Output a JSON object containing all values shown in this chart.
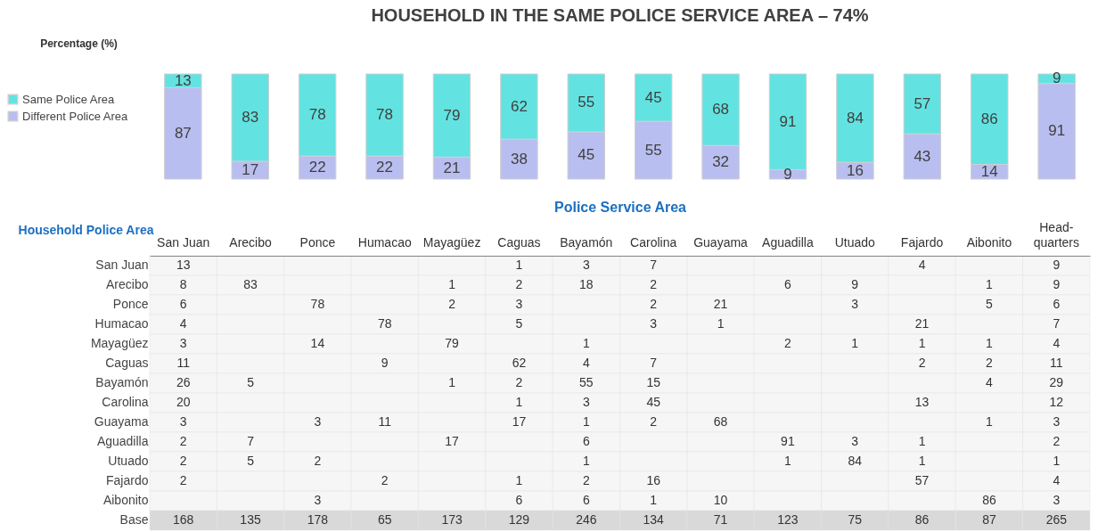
{
  "chart_data": [
    {
      "type": "bar",
      "title": "HOUSEHOLD IN THE SAME POLICE SERVICE AREA – 74%",
      "ylabel": "Percentage (%)",
      "stacked": true,
      "data_labels": true,
      "legend": "left",
      "tick_labels": false,
      "categories": [
        null,
        null,
        null,
        null,
        null,
        null,
        null,
        null,
        null,
        null,
        null,
        null,
        null,
        null
      ],
      "series": [
        {
          "name": "Different Police Area",
          "color": "#b9bef0",
          "values": [
            87,
            17,
            22,
            22,
            21,
            38,
            45,
            55,
            32,
            9,
            16,
            43,
            14,
            91
          ]
        },
        {
          "name": "Same Police Area",
          "color": "#62e3e1",
          "values": [
            13,
            83,
            78,
            78,
            79,
            62,
            55,
            45,
            68,
            91,
            84,
            57,
            86,
            9
          ]
        }
      ]
    },
    {
      "type": "heatmap",
      "data_labels": true,
      "xlabel": "Police Service Area",
      "ylabel": "Household Police Area",
      "categories": [
        "San Juan",
        "Arecibo",
        "Ponce",
        "Humacao",
        "Mayagüez",
        "Caguas",
        "Bayamón",
        "Carolina",
        "Guayama",
        "Aguadilla",
        "Utuado",
        "Fajardo",
        "Aibonito",
        "Head-quarters"
      ],
      "y_categories": [
        "San Juan",
        "Arecibo",
        "Ponce",
        "Humacao",
        "Mayagüez",
        "Caguas",
        "Bayamón",
        "Carolina",
        "Guayama",
        "Aguadilla",
        "Utuado",
        "Fajardo",
        "Aibonito",
        "Base"
      ],
      "cells": [
        [
          13,
          null,
          null,
          null,
          null,
          1,
          3,
          7,
          null,
          null,
          null,
          4,
          null,
          9
        ],
        [
          8,
          83,
          null,
          null,
          1,
          2,
          18,
          2,
          null,
          6,
          9,
          null,
          1,
          9
        ],
        [
          6,
          null,
          78,
          null,
          2,
          3,
          null,
          2,
          21,
          null,
          3,
          null,
          5,
          6
        ],
        [
          4,
          null,
          null,
          78,
          null,
          5,
          null,
          3,
          1,
          null,
          null,
          21,
          null,
          7
        ],
        [
          3,
          null,
          14,
          null,
          79,
          null,
          1,
          null,
          null,
          2,
          1,
          1,
          1,
          4
        ],
        [
          11,
          null,
          null,
          9,
          null,
          62,
          4,
          7,
          null,
          null,
          null,
          2,
          2,
          11
        ],
        [
          26,
          5,
          null,
          null,
          1,
          2,
          55,
          15,
          null,
          null,
          null,
          null,
          4,
          29
        ],
        [
          20,
          null,
          null,
          null,
          null,
          1,
          3,
          45,
          null,
          null,
          null,
          13,
          null,
          12
        ],
        [
          3,
          null,
          3,
          11,
          null,
          17,
          1,
          2,
          68,
          null,
          null,
          null,
          1,
          3
        ],
        [
          2,
          7,
          null,
          null,
          17,
          null,
          6,
          null,
          null,
          91,
          3,
          1,
          null,
          2
        ],
        [
          2,
          5,
          2,
          null,
          null,
          null,
          1,
          null,
          null,
          1,
          84,
          1,
          null,
          1
        ],
        [
          2,
          null,
          null,
          2,
          null,
          1,
          2,
          16,
          null,
          null,
          null,
          57,
          null,
          4
        ],
        [
          null,
          null,
          3,
          null,
          null,
          6,
          6,
          1,
          10,
          null,
          null,
          null,
          86,
          3
        ],
        [
          168,
          135,
          178,
          65,
          173,
          129,
          246,
          134,
          71,
          123,
          75,
          86,
          87,
          265
        ]
      ]
    }
  ]
}
